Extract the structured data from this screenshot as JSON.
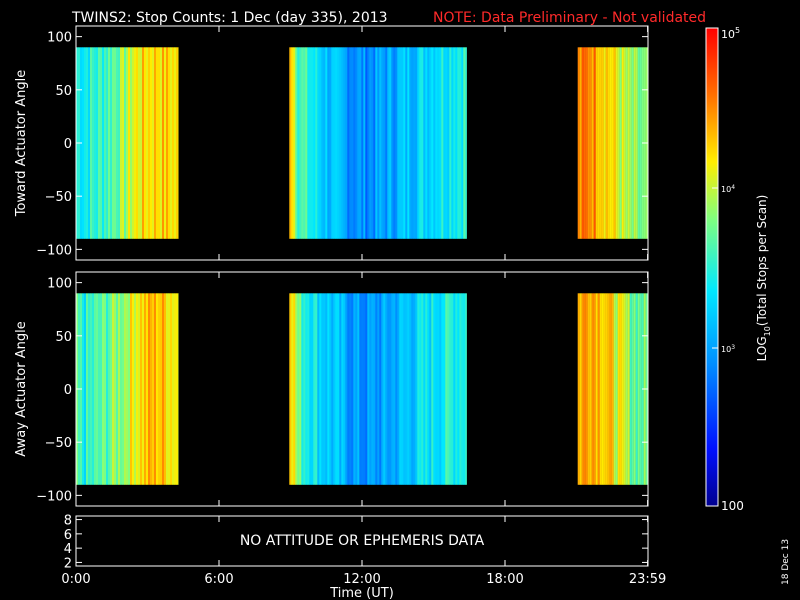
{
  "title_main": "TWINS2: Stop Counts:  1 Dec (day 335), 2013",
  "title_note": "NOTE: Data Preliminary - Not validated",
  "side_date": "18 Dec 13",
  "colors": {
    "background": "#000000",
    "axes": "#ffffff",
    "note": "#ff2a2a"
  },
  "chart_data": [
    {
      "type": "heatmap",
      "ylabel": "Toward Actuator Angle",
      "ylim": [
        -110,
        110
      ],
      "yticks": [
        100,
        50,
        0,
        -50,
        -100
      ],
      "xlim": [
        0,
        24
      ],
      "value_range": [
        -90,
        90
      ],
      "data_intervals_hours": [
        [
          0.0,
          4.3
        ],
        [
          8.95,
          16.4
        ],
        [
          21.05,
          24.0
        ]
      ],
      "profile": [
        {
          "t": 0.0,
          "level": 0.5
        },
        {
          "t": 0.3,
          "level": 0.48
        },
        {
          "t": 1.0,
          "level": 0.52
        },
        {
          "t": 1.6,
          "level": 0.58
        },
        {
          "t": 2.0,
          "level": 0.62
        },
        {
          "t": 2.4,
          "level": 0.7
        },
        {
          "t": 2.9,
          "level": 0.74
        },
        {
          "t": 3.4,
          "level": 0.76
        },
        {
          "t": 3.9,
          "level": 0.74
        },
        {
          "t": 4.3,
          "level": 0.7
        },
        {
          "t": 8.95,
          "level": 0.84
        },
        {
          "t": 9.3,
          "level": 0.55
        },
        {
          "t": 10.0,
          "level": 0.45
        },
        {
          "t": 11.0,
          "level": 0.34
        },
        {
          "t": 12.0,
          "level": 0.3
        },
        {
          "t": 13.0,
          "level": 0.33
        },
        {
          "t": 14.0,
          "level": 0.4
        },
        {
          "t": 15.0,
          "level": 0.46
        },
        {
          "t": 16.0,
          "level": 0.5
        },
        {
          "t": 16.4,
          "level": 0.52
        },
        {
          "t": 21.05,
          "level": 0.8
        },
        {
          "t": 21.5,
          "level": 0.86
        },
        {
          "t": 22.0,
          "level": 0.8
        },
        {
          "t": 22.6,
          "level": 0.7
        },
        {
          "t": 23.2,
          "level": 0.6
        },
        {
          "t": 24.0,
          "level": 0.55
        }
      ]
    },
    {
      "type": "heatmap",
      "ylabel": "Away Actuator Angle",
      "ylim": [
        -110,
        110
      ],
      "yticks": [
        100,
        50,
        0,
        -50,
        -100
      ],
      "xlim": [
        0,
        24
      ],
      "value_range": [
        -90,
        90
      ],
      "data_intervals_hours": [
        [
          0.0,
          4.3
        ],
        [
          8.95,
          16.4
        ],
        [
          21.05,
          24.0
        ]
      ],
      "profile": [
        {
          "t": 0.0,
          "level": 0.52
        },
        {
          "t": 0.3,
          "level": 0.48
        },
        {
          "t": 1.0,
          "level": 0.54
        },
        {
          "t": 1.6,
          "level": 0.6
        },
        {
          "t": 2.0,
          "level": 0.64
        },
        {
          "t": 2.4,
          "level": 0.72
        },
        {
          "t": 2.9,
          "level": 0.76
        },
        {
          "t": 3.4,
          "level": 0.78
        },
        {
          "t": 3.9,
          "level": 0.75
        },
        {
          "t": 4.3,
          "level": 0.7
        },
        {
          "t": 8.95,
          "level": 0.84
        },
        {
          "t": 9.3,
          "level": 0.56
        },
        {
          "t": 10.0,
          "level": 0.46
        },
        {
          "t": 11.0,
          "level": 0.36
        },
        {
          "t": 12.0,
          "level": 0.3
        },
        {
          "t": 13.0,
          "level": 0.33
        },
        {
          "t": 14.0,
          "level": 0.4
        },
        {
          "t": 15.0,
          "level": 0.46
        },
        {
          "t": 16.0,
          "level": 0.5
        },
        {
          "t": 16.4,
          "level": 0.52
        },
        {
          "t": 21.05,
          "level": 0.78
        },
        {
          "t": 21.5,
          "level": 0.84
        },
        {
          "t": 22.0,
          "level": 0.8
        },
        {
          "t": 22.6,
          "level": 0.7
        },
        {
          "t": 23.2,
          "level": 0.6
        },
        {
          "t": 24.0,
          "level": 0.55
        }
      ]
    },
    {
      "type": "line",
      "ylim": [
        1.5,
        8.5
      ],
      "yticks": [
        8,
        6,
        4,
        2
      ],
      "xlim": [
        0,
        24
      ],
      "annotation": "NO ATTITUDE OR EPHEMERIS DATA",
      "xlabel": "Time (UT)",
      "xticks": [
        {
          "value": 0,
          "label": "0:00"
        },
        {
          "value": 6,
          "label": "6:00"
        },
        {
          "value": 12,
          "label": "12:00"
        },
        {
          "value": 18,
          "label": "18:00"
        },
        {
          "value": 23.983,
          "label": "23:59"
        }
      ]
    }
  ],
  "colorbar": {
    "label": "LOG10(Total Stops per Scan)",
    "label_base": "LOG",
    "label_sub": "10",
    "label_rest": "(Total Stops per Scan)",
    "scale": "log",
    "range": [
      100,
      100000
    ],
    "tick_top": "10^5",
    "tick_top_base": "10",
    "tick_top_exp": "5",
    "tick_4_base": "10",
    "tick_4_exp": "4",
    "tick_3_base": "10",
    "tick_3_exp": "3",
    "tick_bottom": "100"
  }
}
